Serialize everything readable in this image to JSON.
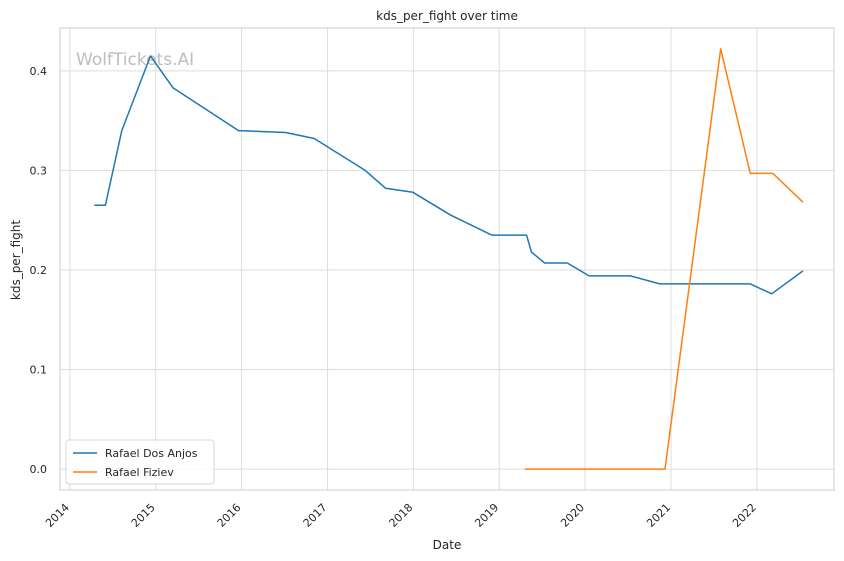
{
  "chart_data": {
    "type": "line",
    "title": "kds_per_fight over time",
    "xlabel": "Date",
    "ylabel": "kds_per_fight",
    "watermark": "WolfTickets.AI",
    "x_ticks": [
      "2014",
      "2015",
      "2016",
      "2017",
      "2018",
      "2019",
      "2020",
      "2021",
      "2022"
    ],
    "y_ticks": [
      "0.0",
      "0.1",
      "0.2",
      "0.3",
      "0.4"
    ],
    "xlim": [
      "2013-11-20",
      "2022-11-25"
    ],
    "ylim": [
      -0.021,
      0.443
    ],
    "grid": true,
    "legend_position": "lower-left",
    "series": [
      {
        "name": "Rafael Dos Anjos",
        "color": "#1f77b4",
        "points": [
          [
            "2014-04-15",
            0.265
          ],
          [
            "2014-06-01",
            0.265
          ],
          [
            "2014-08-10",
            0.34
          ],
          [
            "2014-12-10",
            0.415
          ],
          [
            "2015-03-15",
            0.383
          ],
          [
            "2015-12-19",
            0.34
          ],
          [
            "2016-07-07",
            0.338
          ],
          [
            "2016-11-05",
            0.332
          ],
          [
            "2017-06-10",
            0.3
          ],
          [
            "2017-09-05",
            0.282
          ],
          [
            "2017-12-30",
            0.278
          ],
          [
            "2018-06-09",
            0.255
          ],
          [
            "2018-11-30",
            0.235
          ],
          [
            "2019-04-27",
            0.235
          ],
          [
            "2019-05-18",
            0.218
          ],
          [
            "2019-07-13",
            0.207
          ],
          [
            "2019-10-18",
            0.207
          ],
          [
            "2020-01-18",
            0.194
          ],
          [
            "2020-07-12",
            0.194
          ],
          [
            "2020-11-14",
            0.186
          ],
          [
            "2021-12-04",
            0.186
          ],
          [
            "2022-03-05",
            0.176
          ],
          [
            "2022-07-16",
            0.199
          ]
        ]
      },
      {
        "name": "Rafael Fiziev",
        "color": "#ff7f0e",
        "points": [
          [
            "2019-04-20",
            0.0
          ],
          [
            "2020-12-06",
            0.0
          ],
          [
            "2021-07-31",
            0.422
          ],
          [
            "2021-12-04",
            0.297
          ],
          [
            "2022-03-10",
            0.297
          ],
          [
            "2022-07-16",
            0.268
          ]
        ]
      }
    ]
  }
}
